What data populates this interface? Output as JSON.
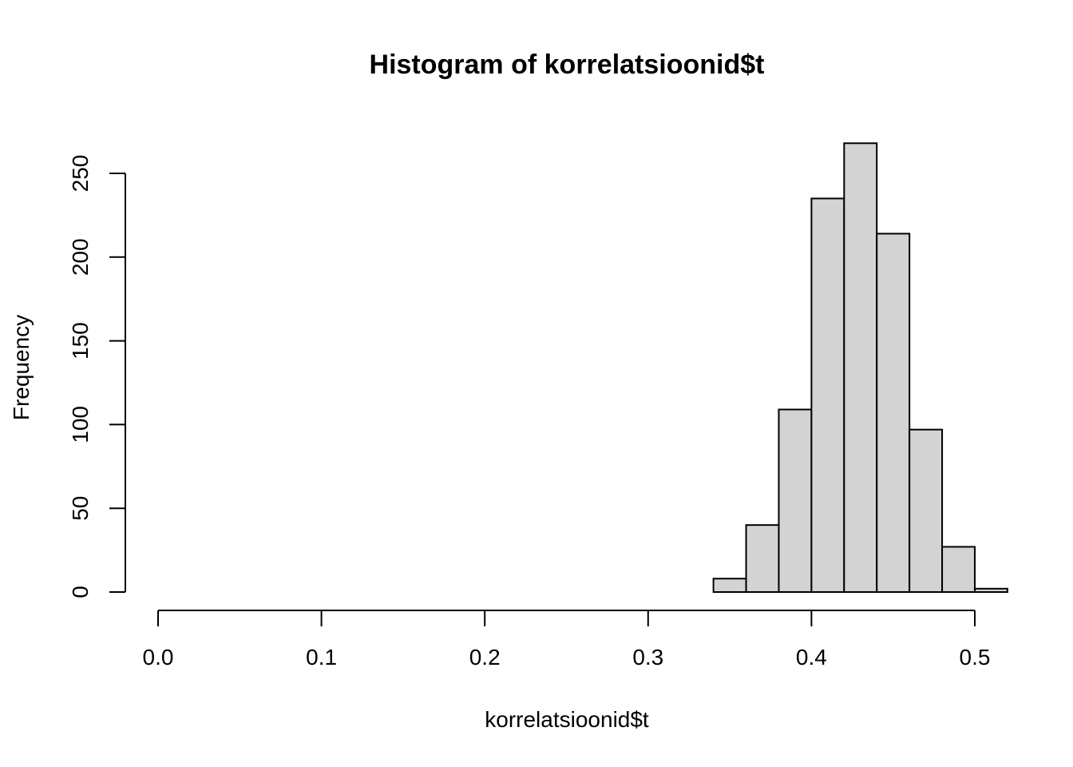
{
  "chart_data": {
    "type": "bar",
    "title": "Histogram of korrelatsioonid$t",
    "xlabel": "korrelatsioonid$t",
    "ylabel": "Frequency",
    "xlim": [
      0.0,
      0.52
    ],
    "ylim": [
      0,
      270
    ],
    "x_ticks": [
      0.0,
      0.1,
      0.2,
      0.3,
      0.4,
      0.5
    ],
    "x_tick_labels": [
      "0.0",
      "0.1",
      "0.2",
      "0.3",
      "0.4",
      "0.5"
    ],
    "y_ticks": [
      0,
      50,
      100,
      150,
      200,
      250
    ],
    "y_tick_labels": [
      "0",
      "50",
      "100",
      "150",
      "200",
      "250"
    ],
    "bins": [
      {
        "start": 0.34,
        "end": 0.36,
        "count": 8
      },
      {
        "start": 0.36,
        "end": 0.38,
        "count": 40
      },
      {
        "start": 0.38,
        "end": 0.4,
        "count": 109
      },
      {
        "start": 0.4,
        "end": 0.42,
        "count": 235
      },
      {
        "start": 0.42,
        "end": 0.44,
        "count": 268
      },
      {
        "start": 0.44,
        "end": 0.46,
        "count": 214
      },
      {
        "start": 0.46,
        "end": 0.48,
        "count": 97
      },
      {
        "start": 0.48,
        "end": 0.5,
        "count": 27
      },
      {
        "start": 0.5,
        "end": 0.52,
        "count": 2
      }
    ],
    "grid": false,
    "colors": {
      "bar_fill": "#d3d3d3",
      "bar_stroke": "#000000"
    }
  }
}
